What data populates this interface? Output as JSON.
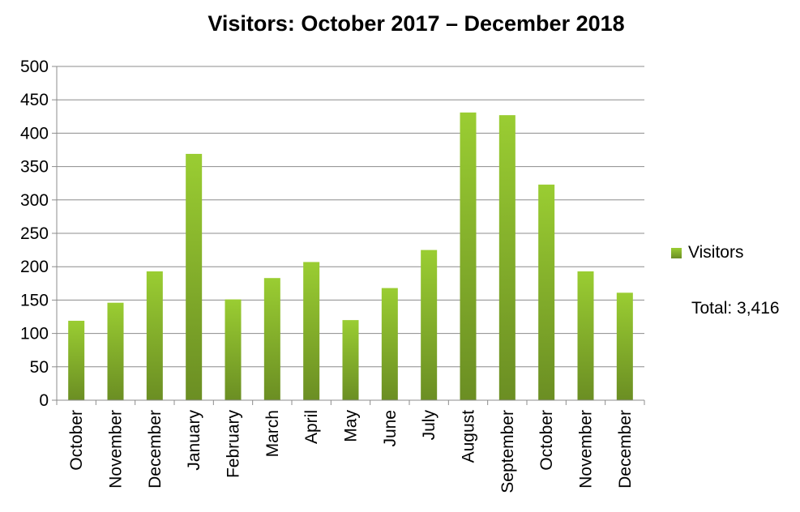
{
  "chart_data": {
    "type": "bar",
    "title": "Visitors: October 2017 – December 2018",
    "categories": [
      "October",
      "November",
      "December",
      "January",
      "February",
      "March",
      "April",
      "May",
      "June",
      "July",
      "August",
      "September",
      "October",
      "November",
      "December"
    ],
    "series": [
      {
        "name": "Visitors",
        "values": [
          119,
          146,
          193,
          369,
          151,
          183,
          207,
          120,
          168,
          225,
          431,
          427,
          323,
          193,
          161
        ]
      }
    ],
    "ylim": [
      0,
      500
    ],
    "yticks": [
      0,
      50,
      100,
      150,
      200,
      250,
      300,
      350,
      400,
      450,
      500
    ],
    "grid": true,
    "legend_position": "right",
    "colors": {
      "bar_top": "#9acd32",
      "bar_bottom": "#6b8e23",
      "grid": "#8c8c8c"
    }
  },
  "legend": {
    "label": "Visitors"
  },
  "total_text": "Total: 3,416"
}
